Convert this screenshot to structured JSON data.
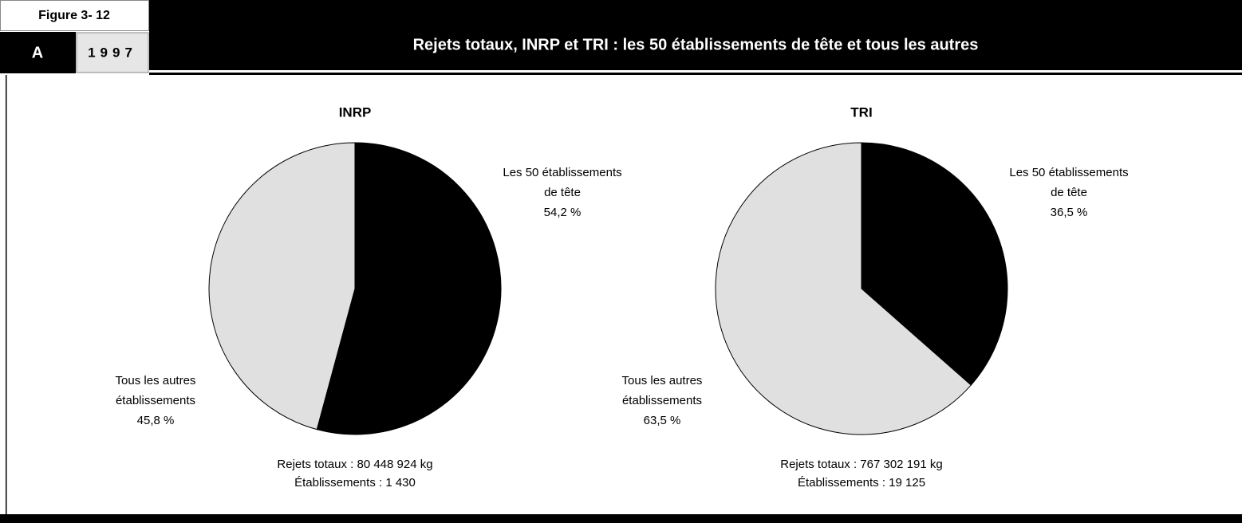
{
  "header": {
    "figure": "Figure 3- 12",
    "letter": "A",
    "year": "1997",
    "title": "Rejets totaux, INRP et TRI : les 50 établissements de tête et tous les autres"
  },
  "chart_data": [
    {
      "type": "pie",
      "title": "INRP",
      "categories": [
        [
          "Les 50 établissements",
          "de tête"
        ],
        [
          "Tous les autres",
          "établissements"
        ]
      ],
      "values": [
        54.2,
        45.8
      ],
      "value_labels": [
        "54,2 %",
        "45,8 %"
      ],
      "colors": [
        "#000000",
        "#e0e0e0"
      ],
      "notes": [
        "Rejets totaux : 80 448 924 kg",
        "Établissements : 1 430"
      ]
    },
    {
      "type": "pie",
      "title": "TRI",
      "categories": [
        [
          "Les 50 établissements",
          "de tête"
        ],
        [
          "Tous les autres",
          "établissements"
        ]
      ],
      "values": [
        36.5,
        63.5
      ],
      "value_labels": [
        "36,5 %",
        "63,5 %"
      ],
      "colors": [
        "#000000",
        "#e0e0e0"
      ],
      "notes": [
        "Rejets totaux : 767 302 191 kg",
        "Établissements : 19 125"
      ]
    }
  ]
}
